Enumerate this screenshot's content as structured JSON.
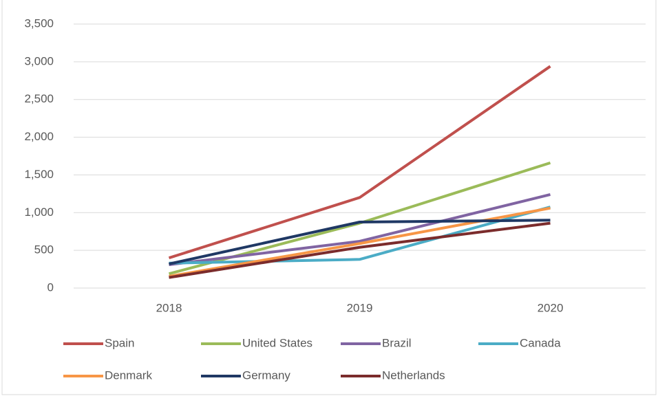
{
  "chart_data": {
    "type": "line",
    "categories": [
      "2018",
      "2019",
      "2020"
    ],
    "series": [
      {
        "name": "Spain",
        "color": "#c0504d",
        "values": [
          400,
          1200,
          2940
        ]
      },
      {
        "name": "United States",
        "color": "#9bbb59",
        "values": [
          190,
          860,
          1660
        ]
      },
      {
        "name": "Brazil",
        "color": "#8064a2",
        "values": [
          310,
          620,
          1240
        ]
      },
      {
        "name": "Canada",
        "color": "#4bacc6",
        "values": [
          330,
          380,
          1075
        ]
      },
      {
        "name": "Denmark",
        "color": "#f79646",
        "values": [
          155,
          590,
          1060
        ]
      },
      {
        "name": "Germany",
        "color": "#1f3864",
        "values": [
          320,
          875,
          900
        ]
      },
      {
        "name": "Netherlands",
        "color": "#7b2c2c",
        "values": [
          140,
          540,
          860
        ]
      }
    ],
    "ylim": [
      0,
      3500
    ],
    "yticks": [
      0,
      500,
      {
        "value": 1000,
        "label": "1,000"
      },
      {
        "value": 1500,
        "label": "1,500"
      },
      {
        "value": 2000,
        "label": "2,000"
      },
      {
        "value": 2500,
        "label": "2,500"
      },
      {
        "value": 3000,
        "label": "3,000"
      },
      {
        "value": 3500,
        "label": "3,500"
      }
    ],
    "grid": true,
    "legend": "bottom"
  }
}
